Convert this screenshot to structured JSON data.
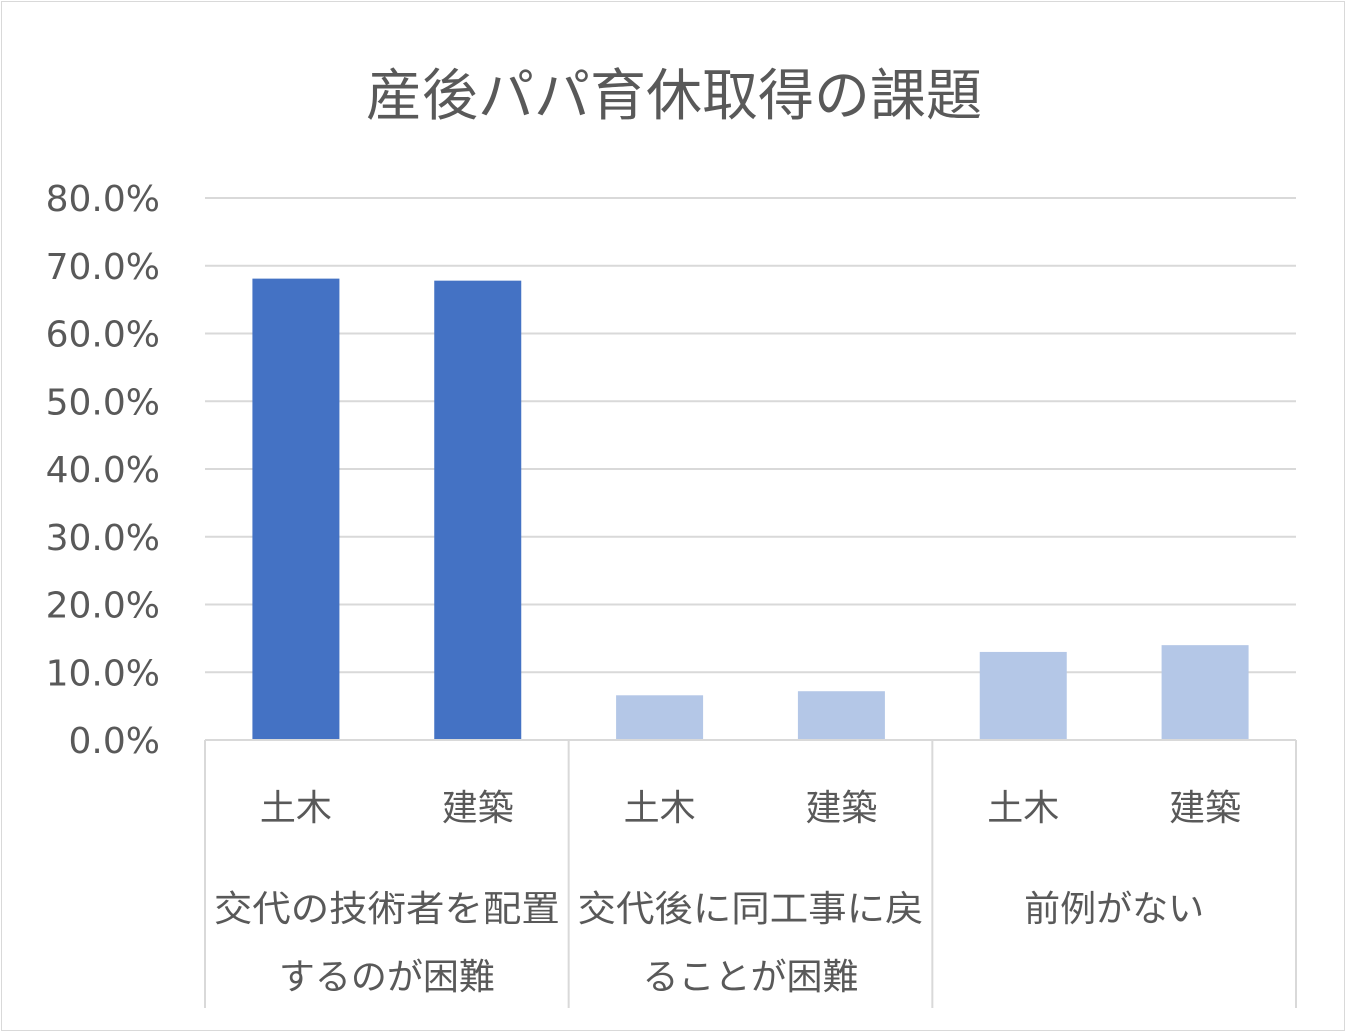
{
  "chart_data": {
    "type": "bar",
    "title": "産後パパ育休取得の課題",
    "yticks": [
      "0.0%",
      "10.0%",
      "20.0%",
      "30.0%",
      "40.0%",
      "50.0%",
      "60.0%",
      "70.0%",
      "80.0%"
    ],
    "ylim": [
      0,
      80
    ],
    "grid": true,
    "groups": [
      {
        "label_lines": [
          "交代の技術者を配置",
          "するのが困難"
        ],
        "categories": [
          "土木",
          "建築"
        ],
        "values": [
          68.1,
          67.8
        ],
        "color": "#4472c4"
      },
      {
        "label_lines": [
          "交代後に同工事に戻",
          "ることが困難"
        ],
        "categories": [
          "土木",
          "建築"
        ],
        "values": [
          6.6,
          7.2
        ],
        "color": "#b4c7e7"
      },
      {
        "label_lines": [
          "前例がない"
        ],
        "categories": [
          "土木",
          "建築"
        ],
        "values": [
          13.0,
          14.0
        ],
        "color": "#b4c7e7"
      }
    ]
  }
}
